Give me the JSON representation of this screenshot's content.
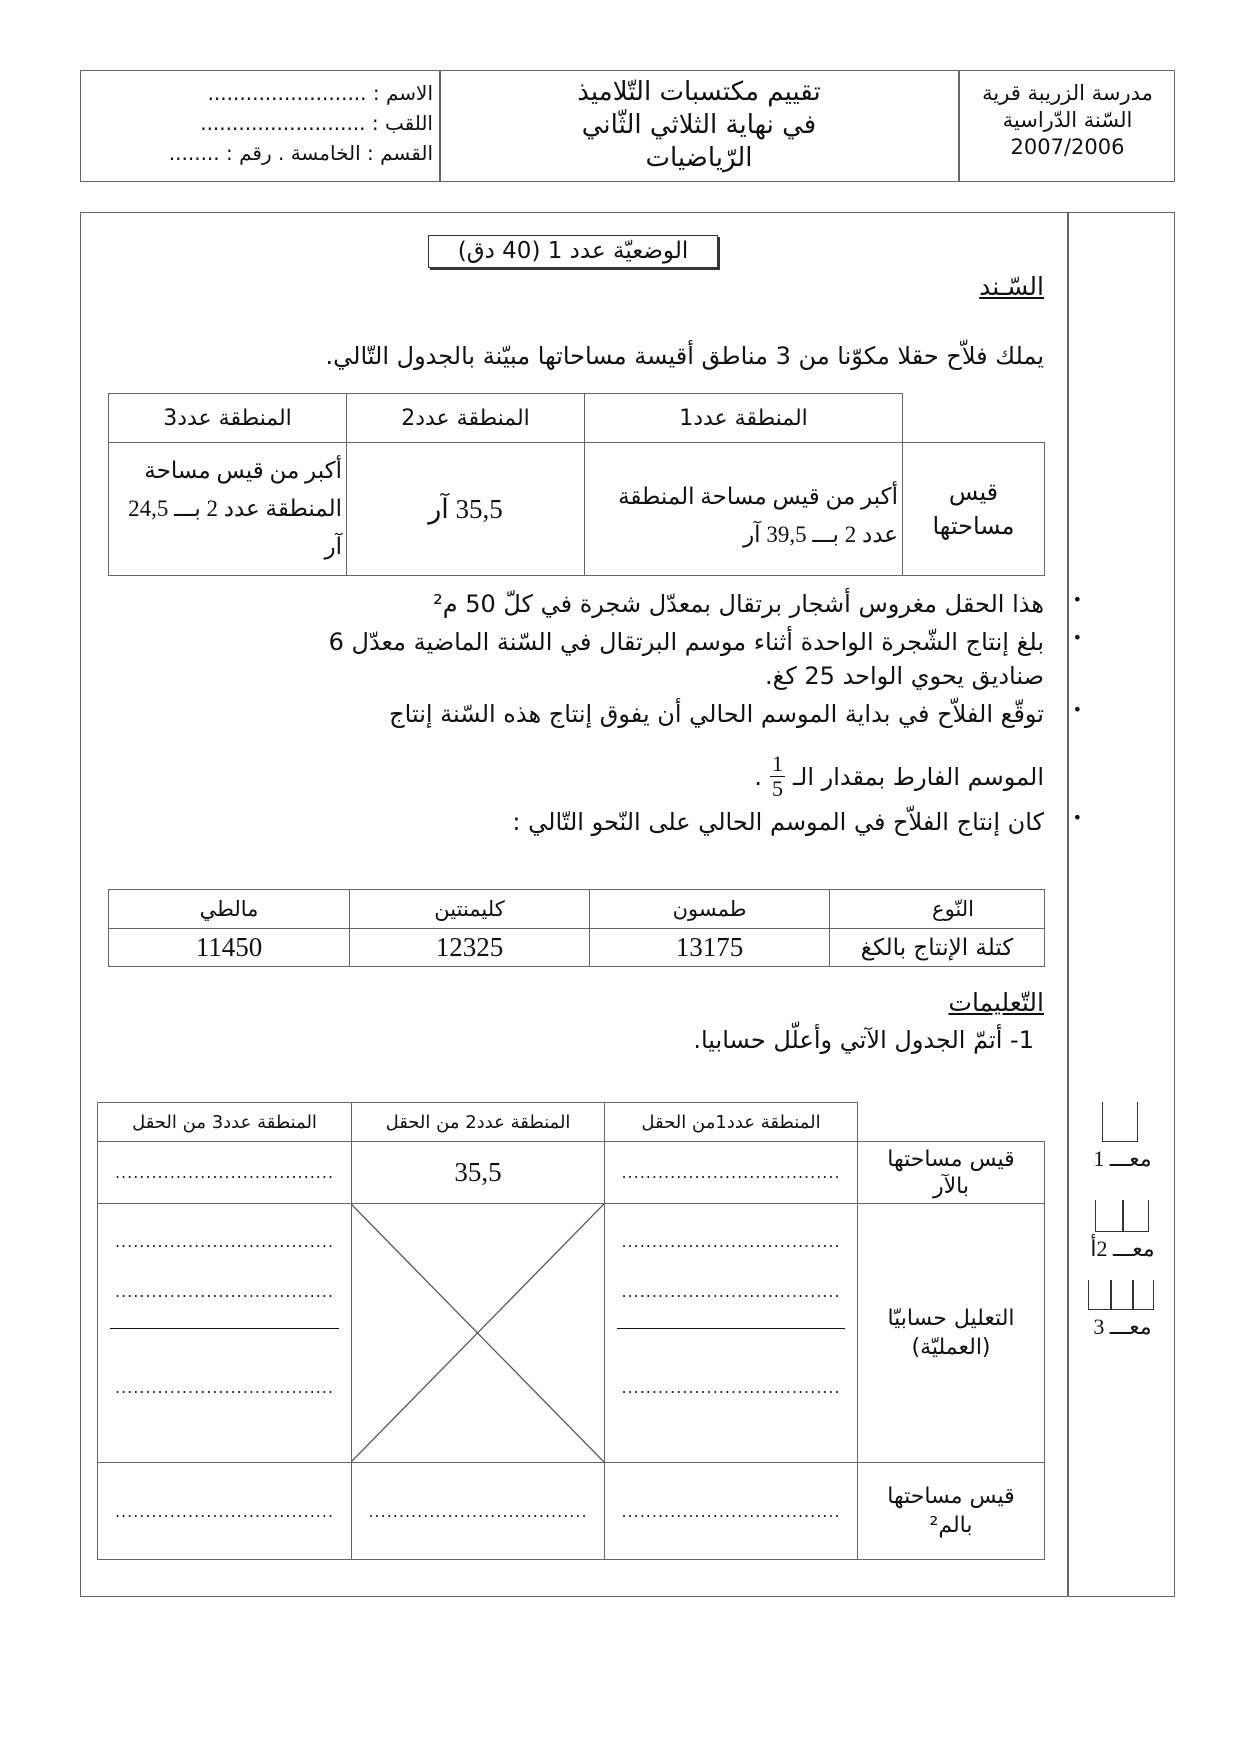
{
  "header": {
    "school": "مدرسة الزريبة قرية",
    "year_label": "السّنة الدّراسية",
    "year": "2007/2006",
    "title_lines": [
      "تقييم مكتسبات التّلاميذ",
      "في نهاية الثلاثي الثّاني",
      "الرّياضيات"
    ],
    "name_field": "الاسم : .........................",
    "surname_field": "اللقب : ..........................",
    "class_field": "القسم : الخامسة  .  رقم : ........"
  },
  "situation": {
    "title": "الوضعيّة عدد 1 (40 دق)",
    "support_heading": "السّـند",
    "intro": "يملك فلاّح حقلا مكوّنا من 3 مناطق أقيسة مساحاتها مبيّنة بالجدول التّالي.",
    "areas_table": {
      "headers": [
        "المنطقة عدد1",
        "المنطقة عدد2",
        "المنطقة عدد3"
      ],
      "row_label": "قيس مساحتها",
      "cells": [
        "أكبر من قيس مساحة المنطقة عدد 2 بـــ 39,5 آر",
        "35,5 آر",
        "أكبر من قيس مساحة المنطقة عدد 2 بـــ 24,5 آر"
      ]
    },
    "bullets": [
      "هذا الحقل مغروس أشجار برتقال بمعدّل شجرة في كلّ 50 م²",
      "بلغ إنتاج الشّجرة الواحدة أثناء موسم البرتقال في السّنة الماضية معدّل 6",
      "صناديق يحوي الواحد 25 كغ.",
      "توقّع الفلاّح في بداية الموسم الحالي أن يفوق إنتاج هذه السّنة إنتاج",
      "الموسم الفارط بمقدار الـ",
      "كان إنتاج الفلاّح في الموسم الحالي على النّحو التّالي :"
    ],
    "fraction": {
      "numerator": "1",
      "denominator": "5"
    },
    "production_table": {
      "row_headers": [
        "النّوع",
        "كتلة الإنتاج بالكغ"
      ],
      "types": [
        "طمسون",
        "كليمنتين",
        "مالطي"
      ],
      "masses": [
        "13175",
        "12325",
        "11450"
      ]
    },
    "instructions_heading": "التّعليمات",
    "question1": "1- أتمّ الجدول الآتي وأعلّل حسابيا.",
    "answer_table": {
      "headers": [
        "المنطقة عدد1من الحقل",
        "المنطقة عدد2 من الحقل",
        "المنطقة عدد3 من الحقل"
      ],
      "rows": [
        {
          "label": "قيس مساحتها بالآر",
          "cells": [
            "....................................",
            "35,5",
            "...................................."
          ]
        },
        {
          "label": "التعليل حسابيّا (العمليّة)"
        },
        {
          "label": "قيس مساحتها بالم²",
          "cells": [
            "....................................",
            "....................................",
            "...................................."
          ]
        }
      ],
      "dots": "...................................."
    }
  },
  "criteria": [
    "معـــ 1",
    "معـــ 2أ",
    "معـــ 3"
  ]
}
